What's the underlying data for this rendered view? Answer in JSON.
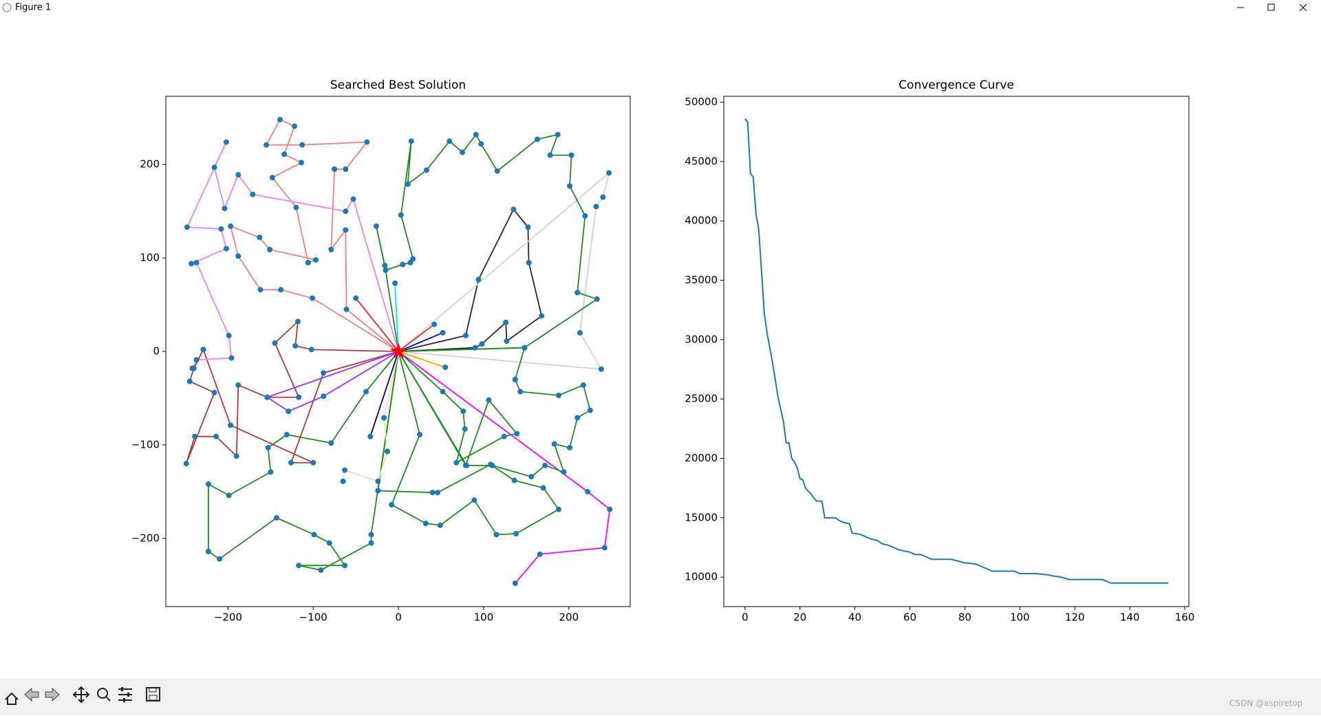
{
  "window": {
    "title": "Figure 1"
  },
  "watermark": "CSDN @aspiretop",
  "chart_data": [
    {
      "type": "route",
      "title": "Searched Best Solution",
      "xlim": [
        -273,
        272
      ],
      "ylim": [
        -273,
        273
      ],
      "xticks": [
        {
          "value": -200,
          "label": "−200"
        },
        {
          "value": -100,
          "label": "−100"
        },
        0,
        100,
        200
      ],
      "yticks": [
        {
          "value": -200,
          "label": "−200"
        },
        {
          "value": -100,
          "label": "−100"
        },
        0,
        100,
        200
      ],
      "marker_color": "#1f77b4",
      "depot": {
        "x": 0,
        "y": 0,
        "color": "#ff0000"
      },
      "series": [
        {
          "color": "#ff00ff",
          "x": [
            0,
            222,
            248,
            242,
            166,
            137
          ],
          "values": [
            0,
            -150,
            -169,
            -210,
            -217,
            -248
          ]
        },
        {
          "color": "#262636",
          "x": [
            0,
            79,
            94,
            135,
            152,
            153,
            168,
            127,
            126,
            98,
            90,
            0
          ],
          "values": [
            0,
            17,
            77,
            152,
            133,
            95,
            38,
            11,
            31,
            8,
            4,
            0
          ]
        },
        {
          "color": "#d3d3d3",
          "x": [
            0,
            247,
            240,
            232,
            213,
            238,
            0
          ],
          "values": [
            0,
            191,
            165,
            155,
            20,
            -19,
            0
          ]
        },
        {
          "color": "#228b22",
          "x": [
            0,
            -16,
            -26,
            -15,
            5,
            14,
            17,
            3,
            15,
            11,
            33,
            60,
            75,
            91,
            97,
            116,
            163,
            187,
            178,
            203,
            201,
            219,
            210,
            233,
            148,
            0
          ],
          "values": [
            0,
            92,
            134,
            87,
            93,
            95,
            99,
            146,
            225,
            179,
            194,
            225,
            213,
            232,
            222,
            193,
            227,
            232,
            210,
            210,
            177,
            145,
            63,
            56,
            4,
            0
          ]
        },
        {
          "color": "#228b22",
          "x": [
            0,
            148,
            137,
            143,
            188,
            217,
            225,
            210,
            201,
            183,
            194,
            172,
            156,
            110,
            80,
            0
          ],
          "values": [
            0,
            4,
            -30,
            -43,
            -47,
            -36,
            -63,
            -71,
            -103,
            -99,
            -129,
            -122,
            -134,
            -122,
            -122,
            0
          ]
        },
        {
          "color": "#228b22",
          "x": [
            0,
            52,
            76,
            78,
            68,
            124,
            139,
            106,
            79,
            0
          ],
          "values": [
            0,
            -43,
            -64,
            -83,
            -119,
            -91,
            -88,
            -52,
            -122,
            0
          ]
        },
        {
          "color": "#228b22",
          "x": [
            0,
            25,
            -8,
            32,
            49,
            89,
            115,
            138,
            188,
            170,
            136,
            108,
            46,
            40,
            -24,
            0
          ],
          "values": [
            0,
            -89,
            -164,
            -184,
            -186,
            -159,
            -196,
            -195,
            -169,
            -146,
            -138,
            -121,
            -151,
            -151,
            -149,
            0
          ]
        },
        {
          "color": "#228b22",
          "x": [
            0,
            -38,
            -79,
            -131,
            -153,
            -150,
            -199,
            -223,
            -223,
            -210,
            -143,
            -99,
            -81,
            -63,
            -117,
            -91,
            -32,
            -32,
            0
          ],
          "values": [
            0,
            -43,
            -98,
            -89,
            -103,
            -129,
            -154,
            -142,
            -214,
            -222,
            -178,
            -196,
            -205,
            -229,
            -229,
            -234,
            -205,
            -196,
            0
          ]
        },
        {
          "color": "#b03a3a",
          "x": [
            0,
            -102,
            -121,
            -118,
            -145,
            -117,
            -154,
            -188,
            -190,
            -214,
            -239,
            -249,
            -216,
            -245,
            -240,
            -229,
            -197,
            -100,
            -126,
            -88,
            0
          ],
          "values": [
            0,
            2,
            6,
            32,
            9,
            -49,
            -49,
            -36,
            -112,
            -91,
            -91,
            -120,
            -44,
            -32,
            -18,
            2,
            -79,
            -119,
            -119,
            -23,
            0
          ]
        },
        {
          "color": "#9b30ff",
          "x": [
            0,
            -154,
            -129,
            -88,
            0
          ],
          "values": [
            0,
            -49,
            -64,
            -48,
            0
          ]
        },
        {
          "color": "#f08080",
          "x": [
            0,
            -101,
            -138,
            -162,
            -188,
            -197,
            -163,
            -151,
            -97,
            -106,
            -120,
            -148,
            -114,
            -134,
            -122,
            -139,
            -155,
            -113,
            -37,
            -62,
            -75,
            -79,
            -62,
            -61,
            0
          ],
          "values": [
            0,
            57,
            66,
            66,
            102,
            134,
            122,
            109,
            98,
            95,
            154,
            186,
            202,
            211,
            241,
            248,
            221,
            221,
            224,
            195,
            195,
            109,
            130,
            45,
            0
          ]
        },
        {
          "color": "#ee82ee",
          "x": [
            0,
            -53,
            -62,
            -171,
            -188,
            -204,
            -216,
            -202,
            -248,
            -208,
            -202,
            -243,
            -237,
            -199,
            -196,
            -237,
            -242
          ],
          "values": [
            0,
            163,
            150,
            168,
            189,
            153,
            197,
            224,
            133,
            131,
            110,
            94,
            95,
            17,
            -7,
            -9,
            -18
          ]
        },
        {
          "color": "#f5deb3",
          "x": [
            0,
            -17,
            -13,
            -24,
            -63,
            -65
          ],
          "values": [
            0,
            -71,
            -107,
            -139,
            -127,
            -139
          ]
        },
        {
          "color": "#00008b",
          "x": [
            0,
            -33,
            0
          ],
          "values": [
            0,
            -91,
            0
          ]
        },
        {
          "color": "#00e5ee",
          "x": [
            0,
            -4,
            0
          ],
          "values": [
            0,
            73,
            0
          ]
        },
        {
          "color": "#ff2020",
          "x": [
            0,
            -50,
            0
          ],
          "values": [
            0,
            57,
            0
          ]
        },
        {
          "color": "#ffa500",
          "x": [
            0,
            55,
            0
          ],
          "values": [
            0,
            -17,
            0
          ]
        },
        {
          "color": "#0000ff",
          "x": [
            0,
            52,
            0
          ],
          "values": [
            0,
            20,
            0
          ]
        },
        {
          "color": "#c0392b",
          "x": [
            0,
            42,
            0
          ],
          "values": [
            0,
            29,
            0
          ]
        }
      ]
    },
    {
      "type": "line",
      "title": "Convergence Curve",
      "xlim": [
        -7.7,
        161.5
      ],
      "ylim": [
        7518,
        50496
      ],
      "xticks": [
        0,
        20,
        40,
        60,
        80,
        100,
        120,
        140,
        160
      ],
      "yticks": [
        10000,
        15000,
        20000,
        25000,
        30000,
        35000,
        40000,
        45000,
        50000
      ],
      "x": [
        0,
        1,
        2,
        3,
        4,
        5,
        6,
        7,
        8,
        10,
        12,
        14,
        15,
        16,
        17,
        18,
        19,
        20,
        21,
        22,
        24,
        26,
        28,
        29,
        33,
        34,
        36,
        38,
        39,
        42,
        44,
        46,
        48,
        50,
        52,
        54,
        56,
        58,
        60,
        62,
        64,
        68,
        75,
        80,
        84,
        86,
        88,
        90,
        98,
        100,
        106,
        110,
        112,
        115,
        118,
        120,
        130,
        133,
        154
      ],
      "series": [
        {
          "color": "#1f77b4",
          "values": [
            48600,
            48300,
            44000,
            43700,
            40600,
            39300,
            35900,
            32300,
            30600,
            28100,
            25200,
            23100,
            21300,
            21300,
            20000,
            19700,
            19200,
            18300,
            18200,
            17500,
            17000,
            16400,
            16400,
            15000,
            15000,
            14800,
            14600,
            14500,
            13700,
            13600,
            13400,
            13200,
            13100,
            12800,
            12700,
            12500,
            12300,
            12200,
            12100,
            11900,
            11900,
            11500,
            11500,
            11200,
            11100,
            10900,
            10700,
            10500,
            10500,
            10300,
            10300,
            10200,
            10100,
            10000,
            9800,
            9800,
            9800,
            9500,
            9500
          ]
        }
      ]
    }
  ]
}
